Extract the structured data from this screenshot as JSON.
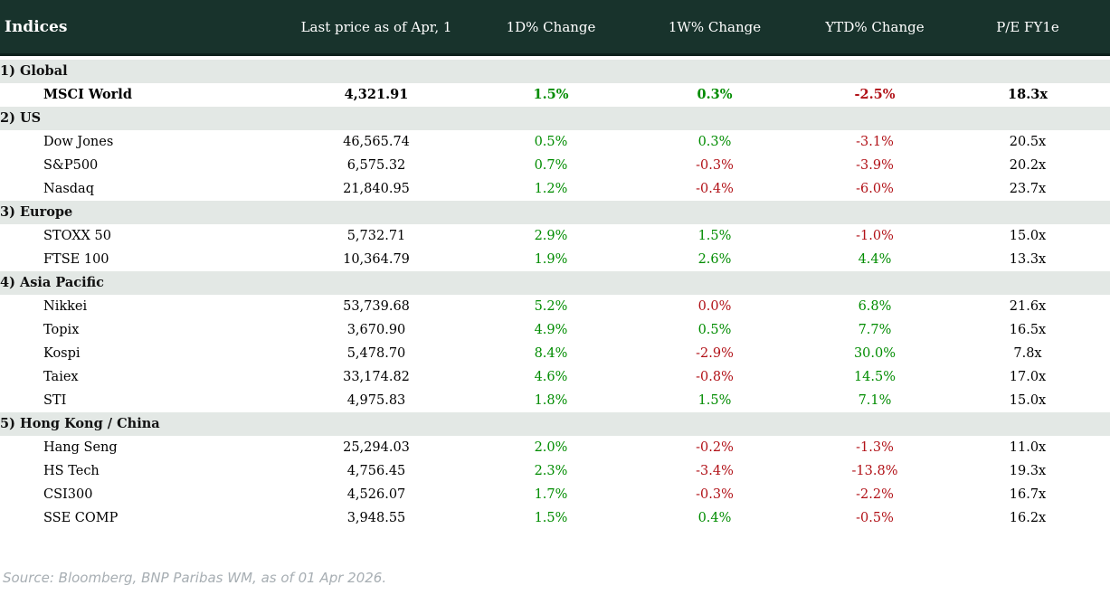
{
  "table_title": "Indices",
  "columns": [
    "Last price as of Apr, 1",
    "1D% Change",
    "1W% Change",
    "YTD% Change",
    "P/E FY1e"
  ],
  "colors": {
    "header_bg": "#18332c",
    "header_border": "#0d211c",
    "section_bg": "#e3e8e5",
    "positive": "#008c00",
    "negative": "#b11117",
    "source_text": "#a7aeb3"
  },
  "sections": [
    {
      "label": "1) Global",
      "rows": [
        {
          "name": "MSCI World",
          "price": "4,321.91",
          "d1": {
            "v": "1.5%",
            "dir": "pos"
          },
          "w1": {
            "v": "0.3%",
            "dir": "pos"
          },
          "ytd": {
            "v": "-2.5%",
            "dir": "neg"
          },
          "pe": "18.3x",
          "bold": true
        }
      ]
    },
    {
      "label": "2) US",
      "rows": [
        {
          "name": "Dow Jones",
          "price": "46,565.74",
          "d1": {
            "v": "0.5%",
            "dir": "pos"
          },
          "w1": {
            "v": "0.3%",
            "dir": "pos"
          },
          "ytd": {
            "v": "-3.1%",
            "dir": "neg"
          },
          "pe": "20.5x",
          "bold": false
        },
        {
          "name": "S&P500",
          "price": "6,575.32",
          "d1": {
            "v": "0.7%",
            "dir": "pos"
          },
          "w1": {
            "v": "-0.3%",
            "dir": "neg"
          },
          "ytd": {
            "v": "-3.9%",
            "dir": "neg"
          },
          "pe": "20.2x",
          "bold": false
        },
        {
          "name": "Nasdaq",
          "price": "21,840.95",
          "d1": {
            "v": "1.2%",
            "dir": "pos"
          },
          "w1": {
            "v": "-0.4%",
            "dir": "neg"
          },
          "ytd": {
            "v": "-6.0%",
            "dir": "neg"
          },
          "pe": "23.7x",
          "bold": false
        }
      ]
    },
    {
      "label": "3) Europe",
      "rows": [
        {
          "name": "STOXX 50",
          "price": "5,732.71",
          "d1": {
            "v": "2.9%",
            "dir": "pos"
          },
          "w1": {
            "v": "1.5%",
            "dir": "pos"
          },
          "ytd": {
            "v": "-1.0%",
            "dir": "neg"
          },
          "pe": "15.0x",
          "bold": false
        },
        {
          "name": "FTSE 100",
          "price": "10,364.79",
          "d1": {
            "v": "1.9%",
            "dir": "pos"
          },
          "w1": {
            "v": "2.6%",
            "dir": "pos"
          },
          "ytd": {
            "v": "4.4%",
            "dir": "pos"
          },
          "pe": "13.3x",
          "bold": false
        }
      ]
    },
    {
      "label": "4) Asia Pacific",
      "rows": [
        {
          "name": "Nikkei",
          "price": "53,739.68",
          "d1": {
            "v": "5.2%",
            "dir": "pos"
          },
          "w1": {
            "v": "0.0%",
            "dir": "neg"
          },
          "ytd": {
            "v": "6.8%",
            "dir": "pos"
          },
          "pe": "21.6x",
          "bold": false
        },
        {
          "name": "Topix",
          "price": "3,670.90",
          "d1": {
            "v": "4.9%",
            "dir": "pos"
          },
          "w1": {
            "v": "0.5%",
            "dir": "pos"
          },
          "ytd": {
            "v": "7.7%",
            "dir": "pos"
          },
          "pe": "16.5x",
          "bold": false
        },
        {
          "name": "Kospi",
          "price": "5,478.70",
          "d1": {
            "v": "8.4%",
            "dir": "pos"
          },
          "w1": {
            "v": "-2.9%",
            "dir": "neg"
          },
          "ytd": {
            "v": "30.0%",
            "dir": "pos"
          },
          "pe": "7.8x",
          "bold": false
        },
        {
          "name": "Taiex",
          "price": "33,174.82",
          "d1": {
            "v": "4.6%",
            "dir": "pos"
          },
          "w1": {
            "v": "-0.8%",
            "dir": "neg"
          },
          "ytd": {
            "v": "14.5%",
            "dir": "pos"
          },
          "pe": "17.0x",
          "bold": false
        },
        {
          "name": "STI",
          "price": "4,975.83",
          "d1": {
            "v": "1.8%",
            "dir": "pos"
          },
          "w1": {
            "v": "1.5%",
            "dir": "pos"
          },
          "ytd": {
            "v": "7.1%",
            "dir": "pos"
          },
          "pe": "15.0x",
          "bold": false
        }
      ]
    },
    {
      "label": "5) Hong Kong / China",
      "rows": [
        {
          "name": "Hang Seng",
          "price": "25,294.03",
          "d1": {
            "v": "2.0%",
            "dir": "pos"
          },
          "w1": {
            "v": "-0.2%",
            "dir": "neg"
          },
          "ytd": {
            "v": "-1.3%",
            "dir": "neg"
          },
          "pe": "11.0x",
          "bold": false
        },
        {
          "name": "HS Tech",
          "price": "4,756.45",
          "d1": {
            "v": "2.3%",
            "dir": "pos"
          },
          "w1": {
            "v": "-3.4%",
            "dir": "neg"
          },
          "ytd": {
            "v": "-13.8%",
            "dir": "neg"
          },
          "pe": "19.3x",
          "bold": false
        },
        {
          "name": "CSI300",
          "price": "4,526.07",
          "d1": {
            "v": "1.7%",
            "dir": "pos"
          },
          "w1": {
            "v": "-0.3%",
            "dir": "neg"
          },
          "ytd": {
            "v": "-2.2%",
            "dir": "neg"
          },
          "pe": "16.7x",
          "bold": false
        },
        {
          "name": "SSE COMP",
          "price": "3,948.55",
          "d1": {
            "v": "1.5%",
            "dir": "pos"
          },
          "w1": {
            "v": "0.4%",
            "dir": "pos"
          },
          "ytd": {
            "v": "-0.5%",
            "dir": "neg"
          },
          "pe": "16.2x",
          "bold": false
        }
      ]
    }
  ],
  "footer": {
    "source": "Source: Bloomberg, BNP Paribas WM, as of 01 Apr 2026."
  }
}
